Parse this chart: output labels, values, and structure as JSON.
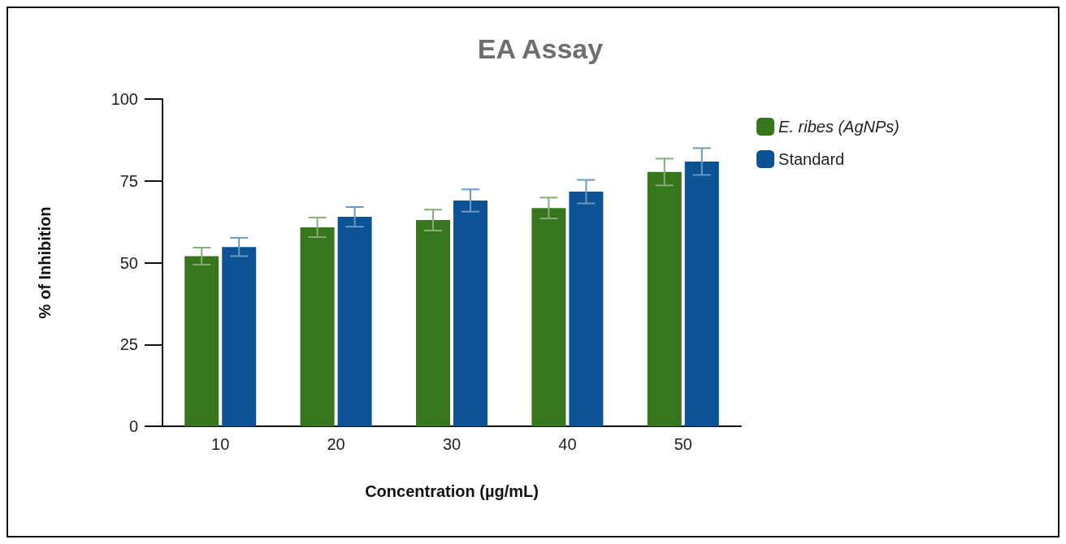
{
  "chart_data": {
    "type": "bar",
    "title": "EA Assay",
    "xlabel": "Concentration (µg/mL)",
    "ylabel": "% of Inhibition",
    "categories": [
      "10",
      "20",
      "30",
      "40",
      "50"
    ],
    "series": [
      {
        "name": "E. ribes (AgNPs)",
        "color": "#38761d",
        "values": [
          52,
          60.8,
          63,
          66.7,
          77.7
        ],
        "errors": [
          2.6,
          3,
          3.2,
          3.2,
          4.1
        ]
      },
      {
        "name": "Standard",
        "color": "#0b5394",
        "values": [
          54.8,
          64,
          69,
          71.7,
          80.9
        ],
        "errors": [
          2.8,
          3,
          3.4,
          3.6,
          4.1
        ]
      }
    ],
    "ylim": [
      0,
      100
    ],
    "yticks": [
      0,
      25,
      50,
      75,
      100
    ],
    "grid": false,
    "legend": "top right"
  }
}
